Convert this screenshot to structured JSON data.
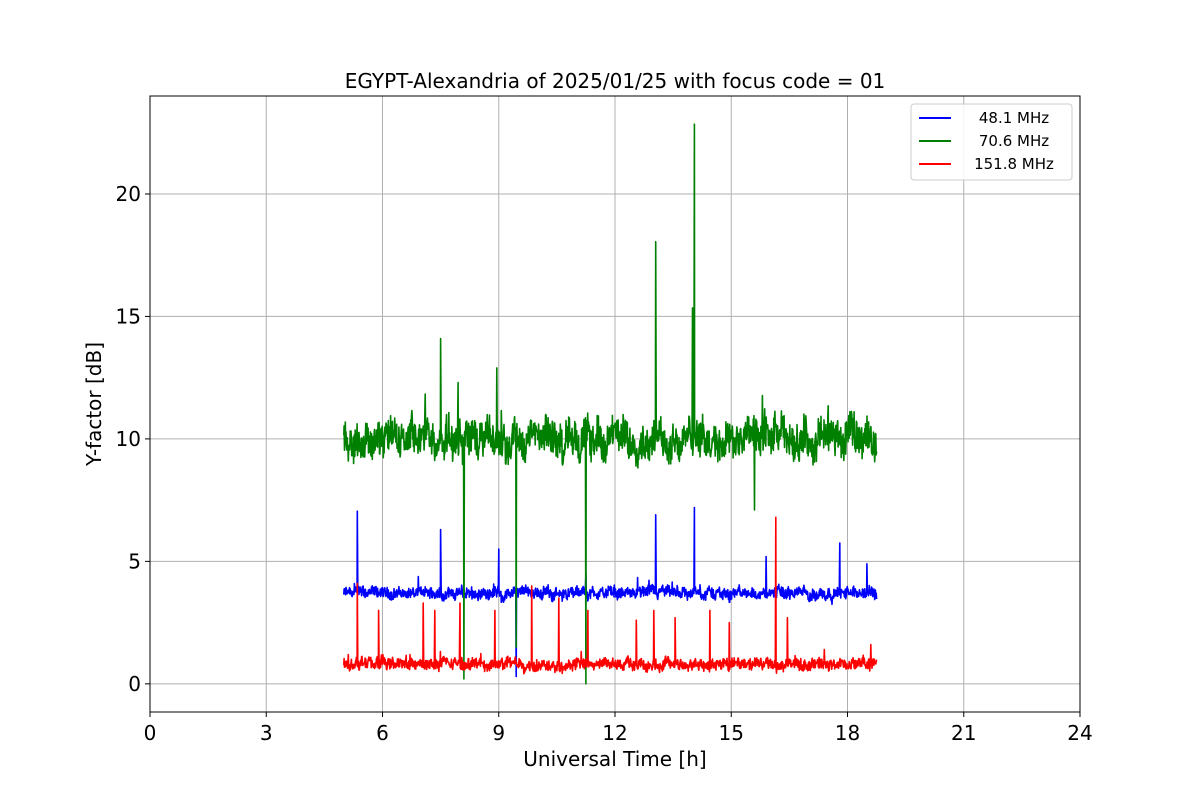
{
  "chart_data": {
    "type": "line",
    "title": "EGYPT-Alexandria of 2025/01/25 with focus code = 01",
    "xlabel": "Universal Time [h]",
    "ylabel": "Y-factor [dB]",
    "xlim": [
      0,
      24
    ],
    "ylim": [
      -1.15,
      24.0
    ],
    "xticks": [
      0,
      3,
      6,
      9,
      12,
      15,
      18,
      21,
      24
    ],
    "yticks": [
      0,
      5,
      10,
      15,
      20
    ],
    "grid": true,
    "legend_position": "top-right",
    "series": [
      {
        "name": "48.1 MHz",
        "color": "#0000ff",
        "x_range": [
          5.0,
          18.75
        ],
        "baseline": 3.7,
        "noise": 0.25,
        "spikes": [
          [
            5.35,
            7.05
          ],
          [
            7.5,
            6.3
          ],
          [
            9.0,
            5.5
          ],
          [
            9.45,
            0.3
          ],
          [
            11.25,
            4.5
          ],
          [
            13.05,
            6.9
          ],
          [
            14.05,
            7.2
          ],
          [
            15.9,
            5.2
          ],
          [
            17.8,
            5.75
          ],
          [
            18.5,
            4.9
          ]
        ]
      },
      {
        "name": "70.6 MHz",
        "color": "#008000",
        "x_range": [
          5.0,
          18.75
        ],
        "baseline": 10.0,
        "noise": 0.8,
        "spikes": [
          [
            7.5,
            14.1
          ],
          [
            7.95,
            12.3
          ],
          [
            8.1,
            0.2
          ],
          [
            8.95,
            12.9
          ],
          [
            9.45,
            1.5
          ],
          [
            11.25,
            0.0
          ],
          [
            13.05,
            18.05
          ],
          [
            14.0,
            15.35
          ],
          [
            14.05,
            22.85
          ],
          [
            15.6,
            7.1
          ]
        ]
      },
      {
        "name": "151.8 MHz",
        "color": "#ff0000",
        "x_range": [
          5.0,
          18.75
        ],
        "baseline": 0.8,
        "noise": 0.25,
        "spikes": [
          [
            5.35,
            4.1
          ],
          [
            5.9,
            3.0
          ],
          [
            7.05,
            3.3
          ],
          [
            7.35,
            3.0
          ],
          [
            8.0,
            3.3
          ],
          [
            8.9,
            3.0
          ],
          [
            9.85,
            4.0
          ],
          [
            10.55,
            3.5
          ],
          [
            11.3,
            3.0
          ],
          [
            12.55,
            2.6
          ],
          [
            13.0,
            3.0
          ],
          [
            13.55,
            2.7
          ],
          [
            14.45,
            3.0
          ],
          [
            14.95,
            2.5
          ],
          [
            16.15,
            6.8
          ],
          [
            16.45,
            2.7
          ],
          [
            17.4,
            1.4
          ],
          [
            18.6,
            1.6
          ]
        ]
      }
    ]
  }
}
